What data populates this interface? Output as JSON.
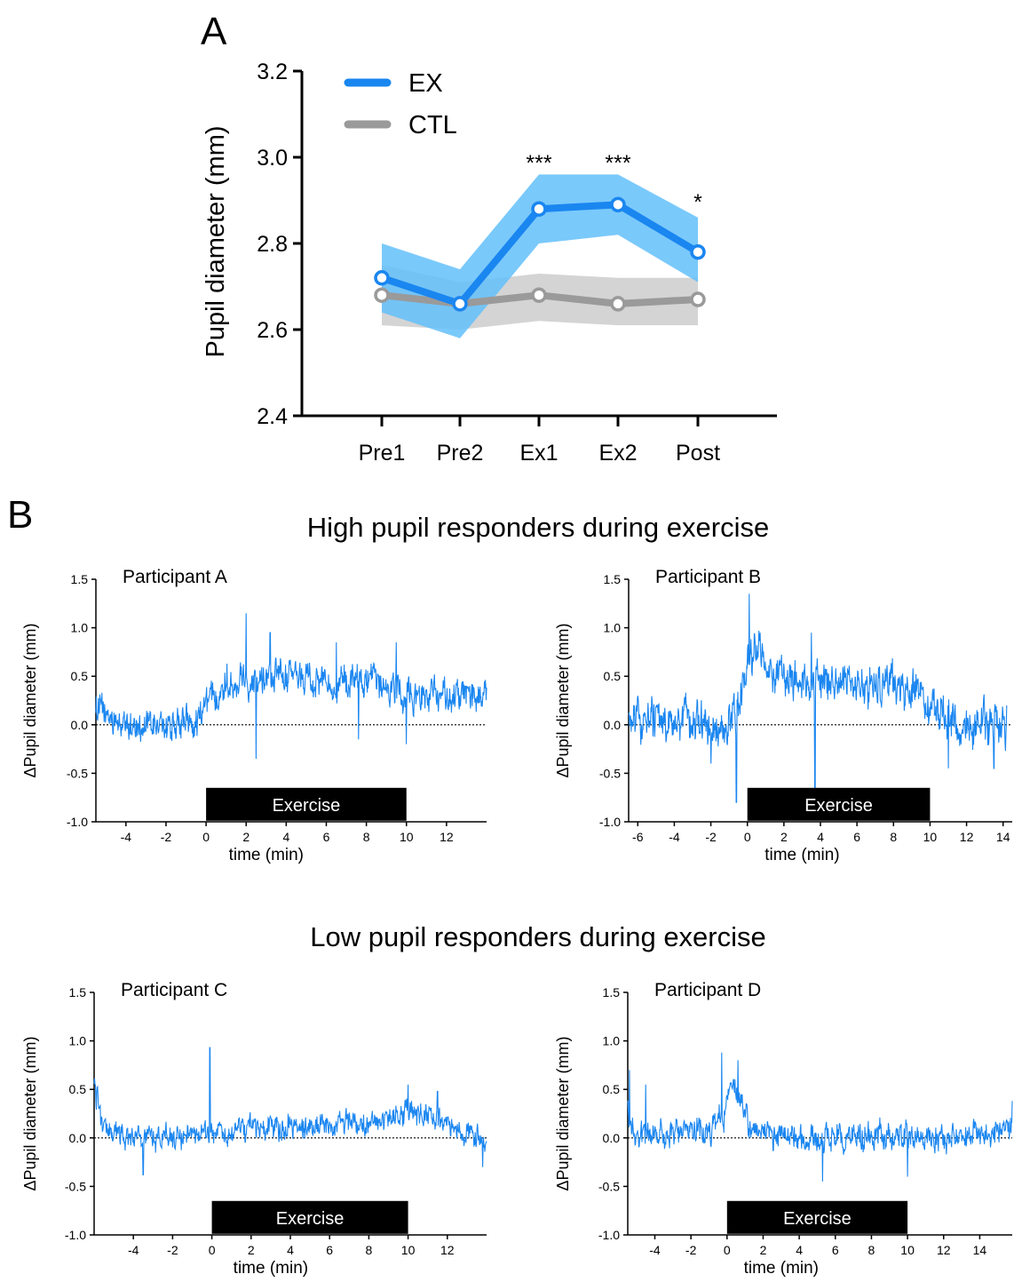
{
  "panel_a_label": "A",
  "panel_b_label": "B",
  "section_titles": {
    "high": "High pupil responders during exercise",
    "low": "Low pupil responders during exercise"
  },
  "colors": {
    "ex": "#1a86f0",
    "ex_band": "#63c0fa",
    "ctl": "#9a9a9a",
    "ctl_band": "#cccccc",
    "trace": "#1a86f0"
  },
  "chart_data": [
    {
      "type": "line",
      "id": "panel-a",
      "title": "",
      "xlabel": "",
      "ylabel": "Pupil diameter (mm)",
      "categories": [
        "Pre1",
        "Pre2",
        "Ex1",
        "Ex2",
        "Post"
      ],
      "ylim": [
        2.4,
        3.2
      ],
      "yticks": [
        "2.4",
        "2.6",
        "2.8",
        "3.0",
        "3.2"
      ],
      "legend": "top-left",
      "series": [
        {
          "name": "EX",
          "values": [
            2.72,
            2.66,
            2.88,
            2.89,
            2.78
          ],
          "lower": [
            2.64,
            2.58,
            2.8,
            2.82,
            2.71
          ],
          "upper": [
            2.8,
            2.74,
            2.96,
            2.96,
            2.86
          ]
        },
        {
          "name": "CTL",
          "values": [
            2.68,
            2.66,
            2.68,
            2.66,
            2.67
          ],
          "lower": [
            2.61,
            2.6,
            2.62,
            2.61,
            2.61
          ],
          "upper": [
            2.75,
            2.71,
            2.73,
            2.72,
            2.72
          ]
        }
      ],
      "annotations": [
        {
          "category": "Ex1",
          "text": "***"
        },
        {
          "category": "Ex2",
          "text": "***"
        },
        {
          "category": "Post",
          "text": "*"
        }
      ]
    },
    {
      "type": "line",
      "id": "participant-a",
      "title": "Participant A",
      "xlabel": "time (min)",
      "ylabel": "ΔPupil diameter (mm)",
      "xlim": [
        -5.5,
        14
      ],
      "ylim": [
        -1.0,
        1.5
      ],
      "data_x_end": 14,
      "xticks": [
        "-4",
        "-2",
        "0",
        "2",
        "4",
        "6",
        "8",
        "10",
        "12"
      ],
      "yticks": [
        "-1.0",
        "-0.5",
        "0.0",
        "0.5",
        "1.0",
        "1.5"
      ],
      "exercise_bar": [
        0,
        10
      ],
      "bar_label": "Exercise",
      "profile": [
        [
          -5.5,
          0.2
        ],
        [
          -4.5,
          0.0
        ],
        [
          -2,
          -0.02
        ],
        [
          -0.5,
          0.05
        ],
        [
          0,
          0.2
        ],
        [
          1,
          0.45
        ],
        [
          3,
          0.5
        ],
        [
          6,
          0.45
        ],
        [
          9,
          0.4
        ],
        [
          10.5,
          0.3
        ],
        [
          12,
          0.3
        ],
        [
          14,
          0.3
        ]
      ],
      "noise": 0.12,
      "spikes": [
        [
          2.0,
          1.15
        ],
        [
          2.5,
          -0.35
        ],
        [
          3.2,
          0.95
        ],
        [
          7.6,
          -0.15
        ],
        [
          10,
          -0.2
        ],
        [
          9.5,
          0.85
        ],
        [
          6.5,
          0.85
        ]
      ]
    },
    {
      "type": "line",
      "id": "participant-b",
      "title": "Participant B",
      "xlabel": "time (min)",
      "ylabel": "ΔPupil diameter (mm)",
      "xlim": [
        -6.5,
        14.5
      ],
      "ylim": [
        -1.0,
        1.5
      ],
      "data_x_end": 14.2,
      "xticks": [
        "-6",
        "-4",
        "-2",
        "0",
        "2",
        "4",
        "6",
        "8",
        "10",
        "12",
        "14"
      ],
      "yticks": [
        "-1.0",
        "-0.5",
        "0.0",
        "0.5",
        "1.0",
        "1.5"
      ],
      "exercise_bar": [
        0,
        10
      ],
      "bar_label": "Exercise",
      "profile": [
        [
          -6.5,
          0.0
        ],
        [
          -3,
          0.05
        ],
        [
          -1.5,
          -0.1
        ],
        [
          -0.5,
          0.2
        ],
        [
          0,
          0.6
        ],
        [
          0.5,
          0.8
        ],
        [
          1.5,
          0.5
        ],
        [
          4,
          0.45
        ],
        [
          9,
          0.4
        ],
        [
          10.5,
          0.1
        ],
        [
          12,
          0.0
        ],
        [
          14.2,
          -0.05
        ]
      ],
      "noise": 0.15,
      "spikes": [
        [
          0.1,
          1.35
        ],
        [
          -0.6,
          -0.8
        ],
        [
          3.7,
          -0.75
        ],
        [
          3.5,
          0.95
        ],
        [
          -2,
          -0.4
        ],
        [
          11,
          -0.45
        ],
        [
          13.5,
          -0.45
        ]
      ]
    },
    {
      "type": "line",
      "id": "participant-c",
      "title": "Participant C",
      "xlabel": "time (min)",
      "ylabel": "ΔPupil diameter (mm)",
      "xlim": [
        -6,
        14
      ],
      "ylim": [
        -1.0,
        1.5
      ],
      "data_x_end": 14,
      "xticks": [
        "-4",
        "-2",
        "0",
        "2",
        "4",
        "6",
        "8",
        "10",
        "12"
      ],
      "yticks": [
        "-1.0",
        "-0.5",
        "0.0",
        "0.5",
        "1.0",
        "1.5"
      ],
      "exercise_bar": [
        0,
        10
      ],
      "bar_label": "Exercise",
      "profile": [
        [
          -6,
          0.6
        ],
        [
          -5.6,
          0.1
        ],
        [
          -3,
          0.0
        ],
        [
          0,
          0.05
        ],
        [
          4,
          0.1
        ],
        [
          8,
          0.15
        ],
        [
          10,
          0.25
        ],
        [
          12,
          0.15
        ],
        [
          14,
          -0.05
        ]
      ],
      "noise": 0.09,
      "spikes": [
        [
          -0.1,
          0.93
        ],
        [
          -3.5,
          -0.38
        ],
        [
          10,
          0.55
        ],
        [
          11.5,
          0.48
        ],
        [
          13.8,
          -0.3
        ]
      ]
    },
    {
      "type": "line",
      "id": "participant-d",
      "title": "Participant D",
      "xlabel": "time (min)",
      "ylabel": "ΔPupil diameter (mm)",
      "xlim": [
        -5.5,
        15.8
      ],
      "ylim": [
        -1.0,
        1.5
      ],
      "data_x_end": 15.8,
      "xticks": [
        "-4",
        "-2",
        "0",
        "2",
        "4",
        "6",
        "8",
        "10",
        "12",
        "14"
      ],
      "yticks": [
        "-1.0",
        "-0.5",
        "0.0",
        "0.5",
        "1.0",
        "1.5"
      ],
      "exercise_bar": [
        0,
        10
      ],
      "bar_label": "Exercise",
      "profile": [
        [
          -5.5,
          0.3
        ],
        [
          -5,
          0.0
        ],
        [
          -3,
          0.05
        ],
        [
          -1,
          0.05
        ],
        [
          -0.2,
          0.25
        ],
        [
          0.3,
          0.55
        ],
        [
          1.5,
          0.05
        ],
        [
          5,
          0.0
        ],
        [
          9,
          0.0
        ],
        [
          12,
          0.0
        ],
        [
          15.8,
          0.1
        ]
      ],
      "noise": 0.1,
      "spikes": [
        [
          -0.3,
          0.88
        ],
        [
          0.6,
          0.8
        ],
        [
          -4.5,
          0.55
        ],
        [
          5.3,
          -0.45
        ],
        [
          10,
          -0.4
        ],
        [
          15.8,
          0.38
        ],
        [
          -5.4,
          0.7
        ]
      ]
    }
  ]
}
